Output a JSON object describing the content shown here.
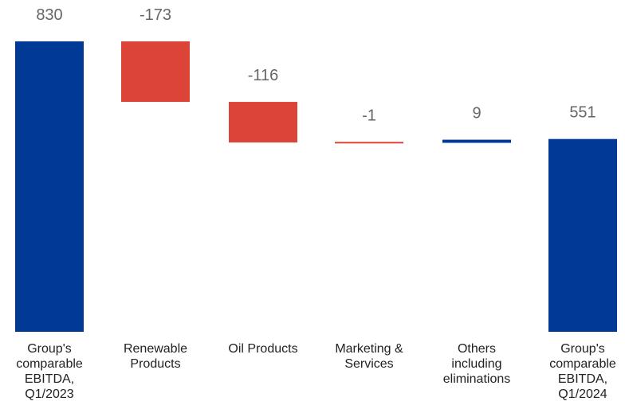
{
  "chart_data": {
    "type": "waterfall",
    "title": "",
    "xlabel": "",
    "ylabel": "",
    "ylim": [
      0,
      830
    ],
    "grid": false,
    "legend": "none",
    "categories": [
      [
        "Group's",
        "comparable",
        "EBITDA,",
        "Q1/2023"
      ],
      [
        "Renewable",
        "Products"
      ],
      [
        "Oil Products"
      ],
      [
        "Marketing &",
        "Services"
      ],
      [
        "Others",
        "including",
        "eliminations"
      ],
      [
        "Group's",
        "comparable",
        "EBITDA,",
        "Q1/2024"
      ]
    ],
    "values": [
      830,
      -173,
      -116,
      -1,
      9,
      551
    ],
    "value_labels": [
      "830",
      "-173",
      "-116",
      "-1",
      "9",
      "551"
    ],
    "kinds": [
      "total",
      "delta",
      "delta",
      "delta",
      "delta",
      "total"
    ]
  },
  "colors": {
    "total": "#003a96",
    "increase": "#003a96",
    "decrease": "#db4437",
    "value_label": "#666666",
    "category_label": "#222222"
  }
}
